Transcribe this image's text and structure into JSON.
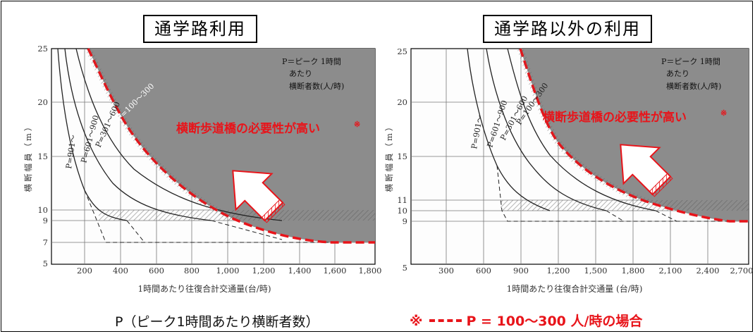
{
  "titles": {
    "left": "通学路利用",
    "right": "通学路以外の利用"
  },
  "legend_note": {
    "line1": "P＝ピーク 1時間",
    "line2": "あたり",
    "line3": "横断者数(人/時)"
  },
  "zone_label": "横断歩道橋の必要性が高い",
  "zone_mark": "※",
  "footer": {
    "left": "P（ピーク1時間あたり横断者数）",
    "mark": "※",
    "right": "P = 100～300 人/時の場合"
  },
  "colors": {
    "zone_fill": "#8c8c8c",
    "highlight": "#e8141a",
    "curve": "#222222"
  },
  "chart_data": [
    {
      "type": "line",
      "title": "通学路利用",
      "xlabel": "1時間あたり往復合計交通量(台/時)",
      "ylabel": "横断幅員（m）",
      "xlim": [
        0,
        1800
      ],
      "ylim": [
        5,
        25
      ],
      "x_ticks": [
        "200",
        "400",
        "600",
        "800",
        "1,000",
        "1,200",
        "1,400",
        "1,600",
        "1,800"
      ],
      "x_tick_values": [
        200,
        400,
        600,
        800,
        1000,
        1200,
        1400,
        1600,
        1800
      ],
      "y_ticks": [
        "5",
        "7",
        "9",
        "10",
        "15",
        "20",
        "25"
      ],
      "y_tick_values": [
        5,
        7,
        9,
        10,
        15,
        20,
        25
      ],
      "series": [
        {
          "name": "P=100～300",
          "x": [
            350,
            450,
            550,
            700,
            900,
            1100,
            1300,
            1500,
            1650,
            1800
          ],
          "y": [
            25,
            20.5,
            17.5,
            14.5,
            12,
            10,
            8.7,
            7.7,
            7,
            7
          ]
        },
        {
          "name": "P=301～600",
          "x": [
            270,
            350,
            450,
            600,
            800,
            1000,
            1200
          ],
          "y": [
            25,
            20,
            16,
            12.5,
            10.5,
            9.5,
            9
          ]
        },
        {
          "name": "P=601～900",
          "x": [
            180,
            250,
            330,
            450,
            620,
            850
          ],
          "y": [
            25,
            19,
            15,
            12,
            10,
            9
          ]
        },
        {
          "name": "P=901～",
          "x": [
            120,
            180,
            250,
            340,
            450
          ],
          "y": [
            25,
            18,
            13,
            10,
            9
          ]
        }
      ],
      "annotations": [
        "P=100～300",
        "P=301～600",
        "P=601～900",
        "P=901～"
      ]
    },
    {
      "type": "line",
      "title": "通学路以外の利用",
      "xlabel": "1時間あたり往復合計交通量 (台/時)",
      "ylabel": "横断幅員（m）",
      "xlim": [
        0,
        2850
      ],
      "ylim": [
        5,
        25
      ],
      "x_ticks": [
        "300",
        "600",
        "900",
        "1,200",
        "1,500",
        "1,800",
        "2,100",
        "2,400",
        "2,700"
      ],
      "x_tick_values": [
        300,
        600,
        900,
        1200,
        1500,
        1800,
        2100,
        2400,
        2700
      ],
      "y_ticks": [
        "5",
        "9",
        "10",
        "11",
        "15",
        "20",
        "25"
      ],
      "y_tick_values": [
        5,
        9,
        10,
        11,
        15,
        20,
        25
      ],
      "series": [
        {
          "name": "P=100～300",
          "x": [
            900,
            1050,
            1200,
            1500,
            1800,
            2100,
            2400,
            2600,
            2800
          ],
          "y": [
            25,
            20.5,
            17,
            13.5,
            11.5,
            10.5,
            9.7,
            9.2,
            9
          ]
        },
        {
          "name": "P=301～600",
          "x": [
            750,
            850,
            1000,
            1200,
            1500,
            1800
          ],
          "y": [
            25,
            21,
            17,
            14,
            11.5,
            10
          ]
        },
        {
          "name": "P=601～900",
          "x": [
            550,
            650,
            800,
            1000,
            1250
          ],
          "y": [
            25,
            19,
            15,
            12,
            10
          ]
        },
        {
          "name": "P=901～",
          "x": [
            400,
            500,
            650,
            800,
            950
          ],
          "y": [
            25,
            18,
            14,
            11.5,
            10
          ]
        }
      ],
      "annotations": [
        "P=100～300",
        "P=301～600",
        "P=601～900",
        "P=901～"
      ]
    }
  ]
}
